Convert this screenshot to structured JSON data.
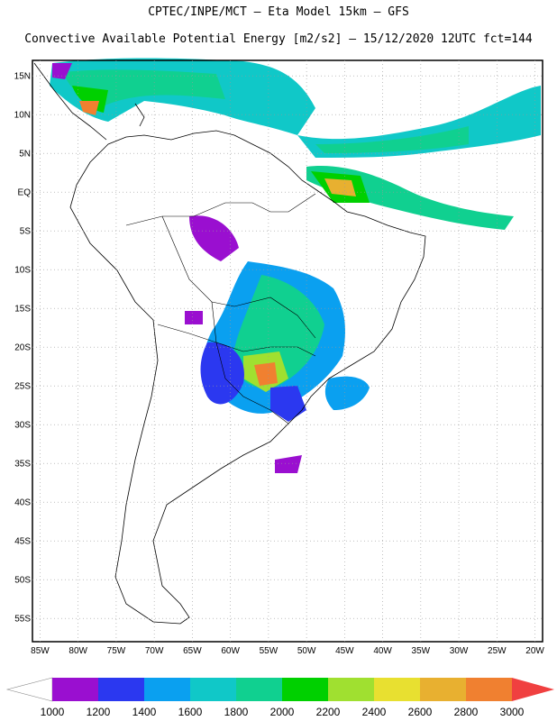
{
  "header": {
    "line1": "CPTEC/INPE/MCT –  Eta Model 15km – GFS",
    "line2": "Convective Available Potential Energy [m2/s2] – 15/12/2020 12UTC fct=144"
  },
  "map": {
    "lon_range": [
      -86,
      -19
    ],
    "lat_range": [
      -58,
      17
    ],
    "lat_labels": [
      "15N",
      "10N",
      "5N",
      "EQ",
      "5S",
      "10S",
      "15S",
      "20S",
      "25S",
      "30S",
      "35S",
      "40S",
      "45S",
      "50S",
      "55S"
    ],
    "lat_values": [
      15,
      10,
      5,
      0,
      -5,
      -10,
      -15,
      -20,
      -25,
      -30,
      -35,
      -40,
      -45,
      -50,
      -55
    ],
    "lon_labels": [
      "85W",
      "80W",
      "75W",
      "70W",
      "65W",
      "60W",
      "55W",
      "50W",
      "45W",
      "40W",
      "35W",
      "30W",
      "25W",
      "20W"
    ],
    "lon_values": [
      -85,
      -80,
      -75,
      -70,
      -65,
      -60,
      -55,
      -50,
      -45,
      -40,
      -35,
      -30,
      -25,
      -20
    ]
  },
  "colorbar": {
    "labels": [
      "1000",
      "1200",
      "1400",
      "1600",
      "1800",
      "2000",
      "2200",
      "2400",
      "2600",
      "2800",
      "3000"
    ],
    "colors": [
      "#9a0fd0",
      "#2b38f0",
      "#0aa0f0",
      "#10c8c8",
      "#10d090",
      "#00d000",
      "#a0e030",
      "#e8e030",
      "#e8b030",
      "#f08030"
    ],
    "under_color": "#ffffff",
    "over_color": "#f04040"
  }
}
